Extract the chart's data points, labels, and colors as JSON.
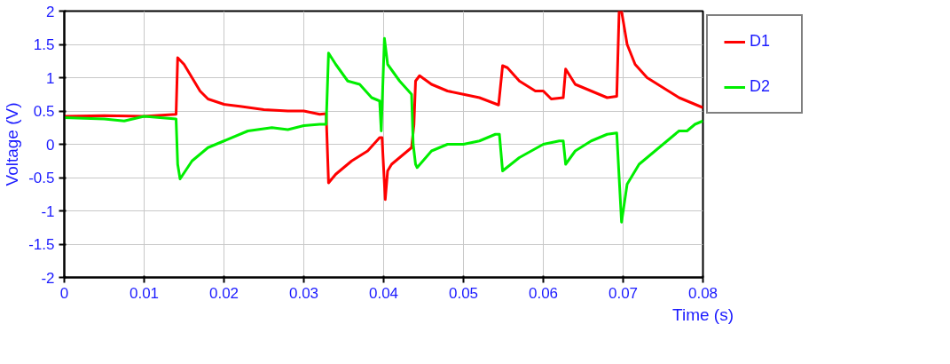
{
  "chart_data": {
    "type": "line",
    "xlabel": "Time (s)",
    "ylabel": "Voltage (V)",
    "xlim": [
      0,
      0.08
    ],
    "xticks": [
      0,
      0.01,
      0.02,
      0.03,
      0.04,
      0.05,
      0.06,
      0.07,
      0.08
    ],
    "ylim": [
      -2,
      2
    ],
    "yticks": [
      -2,
      -1.5,
      -1,
      -0.5,
      0,
      0.5,
      1,
      1.5,
      2
    ],
    "grid": true,
    "legend": "top right",
    "marker": "none",
    "line_style": "solid",
    "series": [
      {
        "name": "D1",
        "color": "#ff0000",
        "x": [
          0,
          0.005,
          0.01,
          0.014,
          0.0142,
          0.015,
          0.016,
          0.017,
          0.018,
          0.02,
          0.022,
          0.025,
          0.028,
          0.03,
          0.032,
          0.0328,
          0.0331,
          0.034,
          0.036,
          0.038,
          0.0395,
          0.0398,
          0.0402,
          0.0405,
          0.041,
          0.042,
          0.0435,
          0.0438,
          0.044,
          0.0445,
          0.046,
          0.048,
          0.05,
          0.052,
          0.0544,
          0.0549,
          0.0555,
          0.057,
          0.059,
          0.06,
          0.061,
          0.0625,
          0.0628,
          0.064,
          0.066,
          0.068,
          0.0692,
          0.0695,
          0.0698,
          0.0705,
          0.0715,
          0.073,
          0.075,
          0.077,
          0.079,
          0.08
        ],
        "values": [
          0.42,
          0.43,
          0.42,
          0.45,
          1.3,
          1.2,
          1.0,
          0.8,
          0.68,
          0.6,
          0.57,
          0.52,
          0.5,
          0.5,
          0.45,
          0.46,
          -0.58,
          -0.45,
          -0.25,
          -0.1,
          0.1,
          0.1,
          -0.83,
          -0.4,
          -0.3,
          -0.2,
          -0.05,
          0.3,
          0.95,
          1.03,
          0.9,
          0.8,
          0.75,
          0.7,
          0.59,
          1.18,
          1.15,
          0.95,
          0.8,
          0.8,
          0.68,
          0.7,
          1.13,
          0.9,
          0.8,
          0.7,
          0.72,
          2.0,
          2.0,
          1.5,
          1.2,
          1.0,
          0.85,
          0.7,
          0.6,
          0.55
        ]
      },
      {
        "name": "D2",
        "color": "#00ee00",
        "x": [
          0,
          0.005,
          0.0075,
          0.01,
          0.014,
          0.0142,
          0.0145,
          0.016,
          0.018,
          0.02,
          0.023,
          0.026,
          0.028,
          0.03,
          0.032,
          0.0328,
          0.0331,
          0.034,
          0.0355,
          0.037,
          0.0385,
          0.0395,
          0.0397,
          0.0401,
          0.0405,
          0.042,
          0.0435,
          0.0437,
          0.044,
          0.0442,
          0.046,
          0.048,
          0.05,
          0.052,
          0.054,
          0.0545,
          0.0549,
          0.057,
          0.06,
          0.062,
          0.0625,
          0.0628,
          0.064,
          0.066,
          0.068,
          0.0692,
          0.0698,
          0.0705,
          0.072,
          0.074,
          0.076,
          0.077,
          0.078,
          0.079,
          0.08
        ],
        "values": [
          0.4,
          0.38,
          0.35,
          0.42,
          0.38,
          -0.3,
          -0.52,
          -0.25,
          -0.05,
          0.05,
          0.2,
          0.25,
          0.22,
          0.28,
          0.3,
          0.3,
          1.37,
          1.2,
          0.95,
          0.9,
          0.7,
          0.65,
          0.2,
          1.59,
          1.2,
          0.95,
          0.75,
          0.0,
          -0.3,
          -0.35,
          -0.1,
          0.0,
          0.0,
          0.05,
          0.15,
          0.15,
          -0.4,
          -0.2,
          0.0,
          0.05,
          0.05,
          -0.3,
          -0.1,
          0.05,
          0.15,
          0.17,
          -1.17,
          -0.6,
          -0.3,
          -0.1,
          0.1,
          0.2,
          0.2,
          0.3,
          0.35
        ]
      }
    ]
  }
}
